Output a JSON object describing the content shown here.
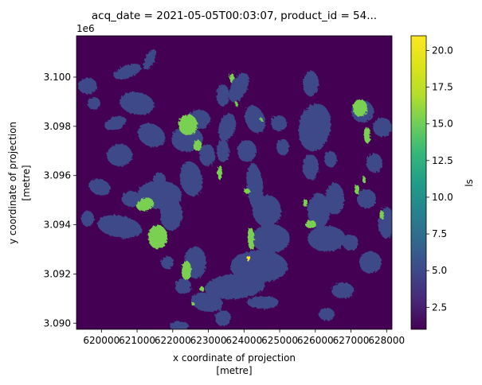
{
  "chart_data": {
    "type": "heatmap",
    "title": "acq_date = 2021-05-05T00:03:07, product_id = 54...",
    "xlabel_line1": "x coordinate of projection",
    "xlabel_line2": "[metre]",
    "ylabel_line1": "y coordinate of projection",
    "ylabel_line2": "[metre]",
    "y_offset_label": "1e6",
    "xlim": [
      619300,
      628150
    ],
    "ylim": [
      3089750,
      3091680
    ],
    "x_ticks": [
      620000,
      621000,
      622000,
      623000,
      624000,
      625000,
      626000,
      627000,
      628000
    ],
    "x_tick_labels": [
      "620000",
      "621000",
      "622000",
      "623000",
      "624000",
      "625000",
      "626000",
      "627000",
      "628000"
    ],
    "y_ticks": [
      3.09,
      3.092,
      3.094,
      3.096,
      3.098,
      3.1
    ],
    "y_tick_labels": [
      "3.090",
      "3.092",
      "3.094",
      "3.096",
      "3.098",
      "3.100"
    ],
    "colorbar": {
      "label": "ls",
      "range": [
        1,
        21
      ],
      "ticks": [
        2.5,
        5.0,
        7.5,
        10.0,
        12.5,
        15.0,
        17.5,
        20.0
      ],
      "tick_labels": [
        "2.5",
        "5.0",
        "7.5",
        "10.0",
        "12.5",
        "15.0",
        "17.5",
        "20.0"
      ],
      "colormap": "viridis"
    },
    "background_value": 1,
    "colors": {
      "background": "#440154",
      "low_class": "#3e4a89",
      "high_class": "#7ad151",
      "peak": "#fde725"
    }
  }
}
